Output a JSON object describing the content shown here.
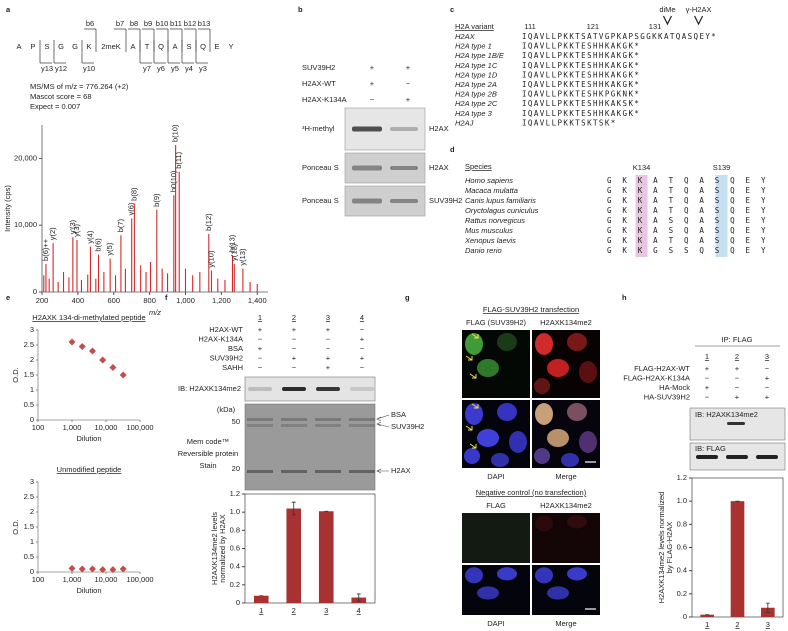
{
  "a": {
    "letter": "a",
    "residues": [
      "A",
      "P",
      "S",
      "G",
      "G",
      "K",
      "2meK",
      "A",
      "T",
      "Q",
      "A",
      "S",
      "Q",
      "E",
      "Y"
    ],
    "b_ions": [
      {
        "label": "b6",
        "color": "#222222"
      },
      {
        "label": "b7",
        "color": "#d03030"
      },
      {
        "label": "b8",
        "color": "#d03030"
      },
      {
        "label": "b9",
        "color": "#d03030"
      },
      {
        "label": "b10",
        "color": "#d03030"
      },
      {
        "label": "b11",
        "color": "#d03030"
      },
      {
        "label": "b12",
        "color": "#d03030"
      },
      {
        "label": "b13",
        "color": "#d03030"
      }
    ],
    "y_ions": [
      {
        "label": "y13",
        "color": "#d03030"
      },
      {
        "label": "y12",
        "color": "#d03030"
      },
      {
        "label": "y10",
        "color": "#d03030"
      },
      {
        "label": "y7",
        "color": "#222222"
      },
      {
        "label": "y6",
        "color": "#222222"
      },
      {
        "label": "y5",
        "color": "#222222"
      },
      {
        "label": "y4",
        "color": "#222222"
      },
      {
        "label": "y3",
        "color": "#222222"
      }
    ],
    "info": [
      "MS/MS of m/z = 776.264 (+2)",
      "Mascot score = 68",
      "Expect = 0.007"
    ],
    "chart": {
      "type": "bar",
      "x_label": "m/z",
      "y_label": "Intensity (cps)",
      "color": "#d42a2a",
      "x": [
        210,
        222,
        240,
        262,
        290,
        320,
        350,
        372,
        395,
        420,
        455,
        470,
        500,
        515,
        545,
        580,
        610,
        640,
        665,
        700,
        715,
        750,
        780,
        805,
        840,
        870,
        900,
        935,
        945,
        965,
        1000,
        1040,
        1080,
        1130,
        1145,
        1180,
        1220,
        1262,
        1272,
        1320,
        1360,
        1400
      ],
      "values": [
        2500,
        4200,
        2000,
        7300,
        1500,
        3000,
        2200,
        8200,
        7800,
        1800,
        2600,
        6800,
        2000,
        5600,
        3000,
        5000,
        2500,
        8500,
        3500,
        11000,
        13200,
        4000,
        3000,
        4500,
        12300,
        3500,
        2800,
        14500,
        22000,
        18000,
        3500,
        2500,
        3000,
        8700,
        3200,
        2000,
        1800,
        5500,
        4200,
        3500,
        1500,
        1200
      ],
      "peak_labels": [
        null,
        "b(6)++",
        null,
        "y(2)",
        null,
        null,
        null,
        "y'(3)",
        "y(3)",
        null,
        null,
        "y(4)",
        null,
        "b(6)",
        null,
        "y(5)",
        null,
        "b(7)",
        null,
        "y(6)",
        "b(8)",
        null,
        null,
        null,
        "b(9)",
        null,
        null,
        "b0(10)",
        "b(10)",
        "b(11)",
        null,
        null,
        null,
        "b(12)",
        "y(10)",
        null,
        null,
        "b(13)",
        "y(12)",
        "y(13)",
        null,
        null
      ],
      "xlim": [
        200,
        1460
      ],
      "xticks": [
        200,
        400,
        600,
        800,
        {
          "value": 1000,
          "label": "1,000"
        },
        {
          "value": 1200,
          "label": "1,200"
        },
        {
          "value": 1400,
          "label": "1,400"
        }
      ],
      "ylim": [
        0,
        25000
      ],
      "yticks": [
        0,
        {
          "value": 10000,
          "label": "10,000"
        },
        {
          "value": 20000,
          "label": "20,000"
        }
      ]
    }
  },
  "b": {
    "letter": "b",
    "rows": [
      {
        "label": "SUV39H2",
        "signs": [
          "+",
          "+"
        ]
      },
      {
        "label": "H2AX-WT",
        "signs": [
          "+",
          "−"
        ]
      },
      {
        "label": "H2AX-K134A",
        "signs": [
          "−",
          "+"
        ]
      }
    ],
    "blots": [
      {
        "left": "³H-methyl",
        "right": "H2AX"
      },
      {
        "left": "Ponceau S",
        "right": "H2AX"
      },
      {
        "left": "Ponceau S",
        "right": "SUV39H2"
      }
    ]
  },
  "c": {
    "letter": "c",
    "header": "H2A variant",
    "positions": [
      111,
      121,
      131
    ],
    "annotations": [
      "diMe",
      "γ-H2AX"
    ],
    "rows": [
      {
        "name": "H2AX",
        "seq": "IQAVLLPKKTSATVGPKAPSGGKKATQASQEY*"
      },
      {
        "name": "H2A type 1",
        "seq": "IQAVLLPKKTESHHKAKGK*"
      },
      {
        "name": "H2A type 1B/E",
        "seq": "IQAVLLPKKTESHHKAKGK*"
      },
      {
        "name": "H2A type 1C",
        "seq": "IQAVLLPKKTESHHKAKGK*"
      },
      {
        "name": "H2A type 1D",
        "seq": "IQAVLLPKKTESHHKAKGK*"
      },
      {
        "name": "H2A type 2A",
        "seq": "IQAVLLPKKTESHHKAKGK*"
      },
      {
        "name": "H2A type 2B",
        "seq": "IQAVLLPKKTESHKPGKNK*"
      },
      {
        "name": "H2A type 2C",
        "seq": "IQAVLLPKKTESHHKAKSK*"
      },
      {
        "name": "H2A type 3",
        "seq": "IQAVLLPKKTESHHKAKGK*"
      },
      {
        "name": "H2AJ",
        "seq": "IQAVLLPKKTSKTSK*"
      }
    ]
  },
  "d": {
    "letter": "d",
    "header": "Species",
    "columns": [
      "K134",
      "S139"
    ],
    "rows": [
      {
        "name": "Homo sapiens",
        "seq": "GKKATQASQEY"
      },
      {
        "name": "Macaca mulatta",
        "seq": "GKKATQASQEY"
      },
      {
        "name": "Canis lupus familiaris",
        "seq": "GKKATQASQEY"
      },
      {
        "name": "Oryctolagus cuniculus",
        "seq": "GKKATQASQEY"
      },
      {
        "name": "Rattus norvegicus",
        "seq": "GKKASQASQEY"
      },
      {
        "name": "Mus musculus",
        "seq": "GKKASQASQEY"
      },
      {
        "name": "Xenopus laevis",
        "seq": "GKKATQASQEY"
      },
      {
        "name": "Danio rerio",
        "seq": "GKKGSSQSQEY"
      }
    ]
  },
  "e": {
    "letter": "e",
    "charts": [
      {
        "type": "scatter",
        "title": "H2AXK 134-di-methylated peptide",
        "x_label": "Dilution",
        "y_label": "O.D.",
        "xscale": "log",
        "color": "#c0504d",
        "x": [
          1000,
          2000,
          4000,
          8000,
          16000,
          32000
        ],
        "values": [
          2.6,
          2.45,
          2.3,
          2.0,
          1.75,
          1.5
        ],
        "xlim": [
          100,
          100000
        ],
        "xticks": [
          100,
          {
            "value": 1000,
            "label": "1,000"
          },
          {
            "value": 10000,
            "label": "10,000"
          },
          {
            "value": 100000,
            "label": "100,000"
          }
        ],
        "ylim": [
          0,
          3
        ],
        "yticks": [
          0,
          0.5,
          1,
          1.5,
          2,
          2.5,
          3
        ]
      },
      {
        "type": "scatter",
        "title": "Unmodified peptide",
        "x_label": "Dilution",
        "y_label": "O.D.",
        "xscale": "log",
        "color": "#c0504d",
        "x": [
          1000,
          2000,
          4000,
          8000,
          16000,
          32000
        ],
        "values": [
          0.12,
          0.1,
          0.1,
          0.08,
          0.08,
          0.1
        ],
        "xlim": [
          100,
          100000
        ],
        "xticks": [
          100,
          {
            "value": 1000,
            "label": "1,000"
          },
          {
            "value": 10000,
            "label": "10,000"
          },
          {
            "value": 100000,
            "label": "100,000"
          }
        ],
        "ylim": [
          0,
          3
        ],
        "yticks": [
          0,
          0.5,
          1,
          1.5,
          2,
          2.5,
          3
        ]
      }
    ]
  },
  "f": {
    "letter": "f",
    "lanes": [
      "1",
      "2",
      "3",
      "4"
    ],
    "rows": [
      {
        "label": "H2AX-WT",
        "signs": [
          "+",
          "+",
          "+",
          "−"
        ]
      },
      {
        "label": "H2AX-K134A",
        "signs": [
          "−",
          "−",
          "−",
          "+"
        ]
      },
      {
        "label": "BSA",
        "signs": [
          "+",
          "−",
          "−",
          "−"
        ]
      },
      {
        "label": "SUV39H2",
        "signs": [
          "−",
          "+",
          "+",
          "+"
        ]
      },
      {
        "label": "SAHH",
        "signs": [
          "−",
          "−",
          "+",
          "−"
        ]
      }
    ],
    "blot_label": "IB: H2AXK134me2",
    "kda": "(kDa)",
    "markers": [
      50,
      20
    ],
    "stain": [
      "Mem code™",
      "Reversible protein",
      "Stain"
    ],
    "bands": [
      "BSA",
      "SUV39H2",
      "H2AX"
    ],
    "chart": {
      "type": "bar",
      "y_label": [
        "H2AXK134me2 levels",
        "normalized by H2AX"
      ],
      "categories": [
        "1",
        "2",
        "3",
        "4"
      ],
      "values": [
        0.08,
        1.04,
        1.01,
        0.06
      ],
      "errors": [
        0,
        0.07,
        0,
        0.04
      ],
      "color": "#a83232",
      "ylim": [
        0,
        1.2
      ],
      "yticks": [
        0,
        0.2,
        0.4,
        0.6,
        0.8,
        {
          "value": 1,
          "label": "1.0"
        },
        1.2
      ]
    }
  },
  "g": {
    "letter": "g",
    "sections": [
      {
        "title": "FLAG-SUV39H2 transfection",
        "top": [
          "FLAG (SUV39H2)",
          "H2AXK134me2"
        ],
        "bottom": [
          "DAPI",
          "Merge"
        ]
      },
      {
        "title": "Negative control (no transfection)",
        "top": [
          "FLAG",
          "H2AXK134me2"
        ],
        "bottom": [
          "DAPI",
          "Merge"
        ]
      }
    ]
  },
  "h": {
    "letter": "h",
    "ip": "IP: FLAG",
    "lanes": [
      "1",
      "2",
      "3"
    ],
    "rows": [
      {
        "label": "FLAG-H2AX-WT",
        "signs": [
          "+",
          "+",
          "−"
        ]
      },
      {
        "label": "FLAG-H2AX-K134A",
        "signs": [
          "−",
          "−",
          "+"
        ]
      },
      {
        "label": "HA-Mock",
        "signs": [
          "+",
          "−",
          "−"
        ]
      },
      {
        "label": "HA-SUV39H2",
        "signs": [
          "−",
          "+",
          "+"
        ]
      }
    ],
    "blots": [
      "IB: H2AXK134me2",
      "IB: FLAG"
    ],
    "chart": {
      "type": "bar",
      "y_label": [
        "H2AXK134me2 levels normalized",
        "by FLAG-H2AX"
      ],
      "categories": [
        "1",
        "2",
        "3"
      ],
      "values": [
        0.02,
        1.0,
        0.08
      ],
      "errors": [
        0,
        0,
        0.04
      ],
      "color": "#a83232",
      "ylim": [
        0,
        1.2
      ],
      "yticks": [
        0,
        0.2,
        0.4,
        0.6,
        0.8,
        {
          "value": 1,
          "label": "1.0"
        },
        1.2
      ]
    }
  }
}
